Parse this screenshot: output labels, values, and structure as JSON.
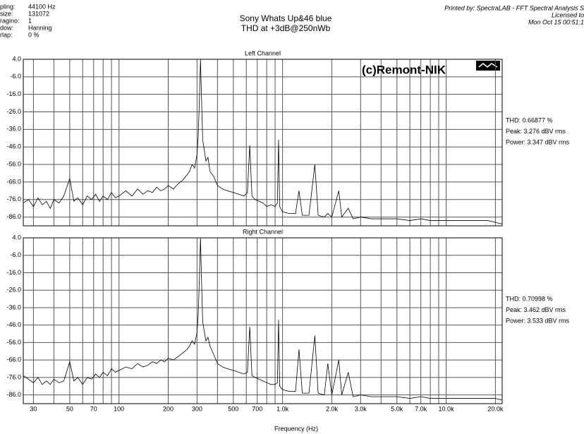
{
  "header": {
    "settings": [
      [
        "pling:",
        "44100 Hz"
      ],
      [
        "size:",
        "131072"
      ],
      [
        "ragino:",
        "1"
      ],
      [
        "dow:",
        "Hanning"
      ],
      [
        "rlap:",
        "0 %"
      ]
    ],
    "title": "Sony Whats Up&46 blue",
    "subtitle": "THD at +3dB@250nWb",
    "printed_by": [
      "Printed by: SpectraLAB - FFT Spectral Analysis S",
      "Licensed to",
      "Mon Oct 15 00:51:1"
    ]
  },
  "chart_data": [
    {
      "type": "line",
      "title": "Left Channel",
      "xscale": "log",
      "grid": true,
      "color": "#000000",
      "annotation": "(c)Remont-NIK",
      "stats": [
        "THD: 0.66877 %",
        "Peak: 3.276 dBV rms",
        "Power: 3.347 dBV rms"
      ],
      "xlim": [
        26,
        22000
      ],
      "ylim": [
        -91,
        4
      ],
      "yticks": [
        {
          "value": 4,
          "label": "4.0"
        },
        {
          "value": -6,
          "label": "-6.0"
        },
        {
          "value": -16,
          "label": "-16.0"
        },
        {
          "value": -26,
          "label": "-26.0"
        },
        {
          "value": -36,
          "label": "-36.0"
        },
        {
          "value": -46,
          "label": "-46.0"
        },
        {
          "value": -56,
          "label": "-56.0"
        },
        {
          "value": -66,
          "label": "-66.0"
        },
        {
          "value": -76,
          "label": "-76.0"
        },
        {
          "value": -86,
          "label": "-86.0"
        }
      ],
      "xgrid": [
        30,
        40,
        50,
        60,
        70,
        80,
        90,
        100,
        200,
        300,
        400,
        500,
        600,
        700,
        800,
        900,
        1000,
        2000,
        3000,
        4000,
        5000,
        6000,
        7000,
        8000,
        9000,
        10000,
        20000
      ],
      "x": [
        26,
        28,
        30,
        32,
        34,
        36,
        38,
        40,
        43,
        46,
        50,
        53,
        56,
        60,
        64,
        68,
        72,
        76,
        80,
        85,
        90,
        95,
        100,
        110,
        120,
        130,
        140,
        150,
        160,
        170,
        180,
        190,
        200,
        215,
        230,
        245,
        260,
        270,
        280,
        290,
        300,
        305,
        310,
        315,
        320,
        325,
        330,
        340,
        350,
        360,
        380,
        400,
        430,
        460,
        500,
        540,
        580,
        610,
        630,
        650,
        680,
        720,
        760,
        800,
        850,
        900,
        930,
        945,
        960,
        1000,
        1100,
        1200,
        1260,
        1320,
        1450,
        1575,
        1650,
        1800,
        1890,
        2000,
        2205,
        2300,
        2520,
        2700,
        3000,
        3500,
        4000,
        5000,
        6000,
        7000,
        8000,
        10000,
        12000,
        15000,
        18000,
        20000,
        22000
      ],
      "values": [
        -78,
        -76,
        -80,
        -75,
        -79,
        -77,
        -81,
        -76,
        -78,
        -74,
        -64,
        -77,
        -75,
        -79,
        -74,
        -76,
        -73,
        -77,
        -74,
        -76,
        -72,
        -75,
        -74,
        -71,
        -74,
        -70,
        -73,
        -71,
        -72,
        -69,
        -71,
        -70,
        -68,
        -70,
        -67,
        -65,
        -62,
        -60,
        -56,
        -58,
        -50,
        -40,
        -20,
        4,
        -20,
        -42,
        -46,
        -54,
        -52,
        -60,
        -63,
        -68,
        -70,
        -71,
        -72,
        -73,
        -74,
        -72,
        -45,
        -74,
        -76,
        -77,
        -78,
        -80,
        -79,
        -80,
        -78,
        -42,
        -80,
        -83,
        -84,
        -84,
        -71,
        -85,
        -85,
        -56,
        -85,
        -86,
        -84,
        -86,
        -71,
        -86,
        -81,
        -87,
        -86,
        -87,
        -87,
        -87,
        -88,
        -87,
        -88,
        -88,
        -88,
        -88,
        -88,
        -89,
        -90
      ]
    },
    {
      "type": "line",
      "title": "Right Channel",
      "xscale": "log",
      "grid": true,
      "color": "#000000",
      "xlabel": "Frequency (Hz)",
      "stats": [
        "THD: 0.70998 %",
        "Peak: 3.462 dBV rms",
        "Power: 3.533 dBV rms"
      ],
      "xlim": [
        26,
        22000
      ],
      "ylim": [
        -91,
        4
      ],
      "yticks": [
        {
          "value": 4,
          "label": "4.0"
        },
        {
          "value": -6,
          "label": "-6.0"
        },
        {
          "value": -16,
          "label": "-16.0"
        },
        {
          "value": -26,
          "label": "-26.0"
        },
        {
          "value": -36,
          "label": "-36.0"
        },
        {
          "value": -46,
          "label": "-46.0"
        },
        {
          "value": -56,
          "label": "-56.0"
        },
        {
          "value": -66,
          "label": "-66.0"
        },
        {
          "value": -76,
          "label": "-76.0"
        },
        {
          "value": -86,
          "label": "-86.0"
        }
      ],
      "xgrid": [
        30,
        40,
        50,
        60,
        70,
        80,
        90,
        100,
        200,
        300,
        400,
        500,
        600,
        700,
        800,
        900,
        1000,
        2000,
        3000,
        4000,
        5000,
        6000,
        7000,
        8000,
        9000,
        10000,
        20000
      ],
      "xticks": [
        30,
        50,
        70,
        100,
        200,
        300,
        500,
        700,
        {
          "value": 1000,
          "label": "1.0k"
        },
        {
          "value": 2000,
          "label": "2.0k"
        },
        {
          "value": 3000,
          "label": "3.0k"
        },
        {
          "value": 5000,
          "label": "5.0k"
        },
        {
          "value": 7000,
          "label": "7.0k"
        },
        {
          "value": 10000,
          "label": "10.0k"
        },
        {
          "value": 20000,
          "label": "20.0k"
        }
      ],
      "x": [
        26,
        28,
        30,
        32,
        34,
        36,
        38,
        40,
        43,
        46,
        50,
        53,
        56,
        60,
        64,
        68,
        72,
        76,
        80,
        85,
        90,
        95,
        100,
        110,
        120,
        130,
        140,
        150,
        160,
        170,
        180,
        190,
        200,
        215,
        230,
        245,
        260,
        270,
        280,
        290,
        300,
        305,
        310,
        315,
        320,
        325,
        330,
        340,
        350,
        360,
        380,
        400,
        430,
        460,
        500,
        540,
        580,
        610,
        630,
        650,
        680,
        720,
        760,
        800,
        850,
        900,
        930,
        945,
        960,
        1000,
        1100,
        1200,
        1260,
        1320,
        1450,
        1575,
        1650,
        1800,
        1890,
        2000,
        2205,
        2300,
        2520,
        2700,
        3000,
        3500,
        4000,
        5000,
        6000,
        7000,
        8000,
        10000,
        12000,
        15000,
        18000,
        20000,
        22000
      ],
      "values": [
        -75,
        -77,
        -79,
        -76,
        -80,
        -78,
        -80,
        -77,
        -79,
        -78,
        -67,
        -78,
        -76,
        -80,
        -76,
        -77,
        -74,
        -76,
        -73,
        -75,
        -71,
        -73,
        -72,
        -70,
        -71,
        -68,
        -70,
        -69,
        -67,
        -68,
        -66,
        -67,
        -65,
        -66,
        -64,
        -62,
        -60,
        -58,
        -55,
        -57,
        -50,
        -40,
        -20,
        4,
        -22,
        -44,
        -48,
        -55,
        -53,
        -58,
        -63,
        -68,
        -70,
        -71,
        -72,
        -73,
        -74,
        -73,
        -47,
        -75,
        -76,
        -77,
        -78,
        -79,
        -80,
        -80,
        -79,
        -43,
        -81,
        -83,
        -84,
        -84,
        -60,
        -85,
        -85,
        -52,
        -85,
        -86,
        -68,
        -86,
        -66,
        -86,
        -73,
        -87,
        -86,
        -87,
        -87,
        -87,
        -88,
        -87,
        -88,
        -88,
        -88,
        -88,
        -88,
        -88,
        -89
      ]
    }
  ]
}
